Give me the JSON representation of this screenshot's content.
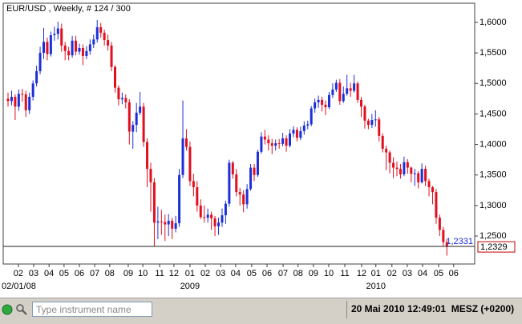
{
  "chart_data": {
    "type": "candlestick",
    "title": "EUR/USD , Weekly, # 124 / 300",
    "up_color": "#1c2fd8",
    "down_color": "#e0101e",
    "open": [
      1.475,
      1.471,
      1.478,
      1.462,
      1.483,
      1.482,
      1.456,
      1.478,
      1.5,
      1.52,
      1.55,
      1.568,
      1.548,
      1.579,
      1.581,
      1.59,
      1.562,
      1.553,
      1.546,
      1.57,
      1.552,
      1.558,
      1.545,
      1.553,
      1.564,
      1.572,
      1.592,
      1.583,
      1.571,
      1.562,
      1.527,
      1.493,
      1.474,
      1.476,
      1.469,
      1.421,
      1.432,
      1.452,
      1.462,
      1.404,
      1.36,
      1.338,
      1.272,
      1.274,
      1.273,
      1.269,
      1.275,
      1.262,
      1.271,
      1.35,
      1.41,
      1.396,
      1.34,
      1.33,
      1.3,
      1.281,
      1.28,
      1.285,
      1.279,
      1.266,
      1.272,
      1.284,
      1.303,
      1.37,
      1.351,
      1.322,
      1.318,
      1.302,
      1.327,
      1.362,
      1.35,
      1.388,
      1.413,
      1.408,
      1.402,
      1.398,
      1.402,
      1.401,
      1.41,
      1.398,
      1.418,
      1.424,
      1.411,
      1.422,
      1.431,
      1.433,
      1.459,
      1.469,
      1.473,
      1.465,
      1.461,
      1.481,
      1.49,
      1.501,
      1.471,
      1.483,
      1.492,
      1.488,
      1.5,
      1.473,
      1.462,
      1.439,
      1.432,
      1.44,
      1.441,
      1.414,
      1.393,
      1.387,
      1.37,
      1.362,
      1.36,
      1.351,
      1.371,
      1.362,
      1.352,
      1.353,
      1.338,
      1.36,
      1.34,
      1.33,
      1.322,
      1.28,
      1.26,
      1.24
    ],
    "high": [
      1.485,
      1.488,
      1.482,
      1.49,
      1.491,
      1.488,
      1.485,
      1.505,
      1.529,
      1.56,
      1.591,
      1.575,
      1.585,
      1.593,
      1.601,
      1.598,
      1.568,
      1.56,
      1.578,
      1.578,
      1.565,
      1.564,
      1.561,
      1.572,
      1.58,
      1.604,
      1.599,
      1.588,
      1.58,
      1.568,
      1.53,
      1.497,
      1.485,
      1.482,
      1.474,
      1.438,
      1.468,
      1.486,
      1.468,
      1.41,
      1.37,
      1.345,
      1.298,
      1.293,
      1.285,
      1.286,
      1.28,
      1.283,
      1.36,
      1.472,
      1.425,
      1.405,
      1.352,
      1.34,
      1.31,
      1.3,
      1.295,
      1.29,
      1.283,
      1.28,
      1.295,
      1.308,
      1.375,
      1.373,
      1.36,
      1.329,
      1.325,
      1.335,
      1.368,
      1.368,
      1.391,
      1.42,
      1.424,
      1.415,
      1.409,
      1.408,
      1.409,
      1.419,
      1.415,
      1.425,
      1.43,
      1.428,
      1.429,
      1.438,
      1.439,
      1.463,
      1.475,
      1.48,
      1.478,
      1.472,
      1.486,
      1.5,
      1.506,
      1.507,
      1.495,
      1.514,
      1.501,
      1.514,
      1.503,
      1.478,
      1.465,
      1.442,
      1.45,
      1.456,
      1.445,
      1.418,
      1.398,
      1.39,
      1.379,
      1.372,
      1.368,
      1.38,
      1.376,
      1.364,
      1.36,
      1.356,
      1.369,
      1.365,
      1.344,
      1.332,
      1.327,
      1.285,
      1.265,
      1.245
    ],
    "low": [
      1.462,
      1.464,
      1.44,
      1.455,
      1.47,
      1.445,
      1.45,
      1.472,
      1.495,
      1.515,
      1.54,
      1.538,
      1.544,
      1.57,
      1.572,
      1.552,
      1.538,
      1.538,
      1.542,
      1.546,
      1.547,
      1.53,
      1.54,
      1.547,
      1.558,
      1.567,
      1.575,
      1.562,
      1.554,
      1.52,
      1.485,
      1.464,
      1.466,
      1.459,
      1.4,
      1.393,
      1.42,
      1.448,
      1.396,
      1.33,
      1.29,
      1.233,
      1.245,
      1.252,
      1.242,
      1.25,
      1.245,
      1.256,
      1.265,
      1.345,
      1.39,
      1.332,
      1.315,
      1.29,
      1.278,
      1.272,
      1.272,
      1.26,
      1.25,
      1.252,
      1.265,
      1.27,
      1.298,
      1.344,
      1.315,
      1.3,
      1.289,
      1.295,
      1.324,
      1.34,
      1.347,
      1.385,
      1.4,
      1.39,
      1.384,
      1.39,
      1.393,
      1.397,
      1.388,
      1.395,
      1.412,
      1.405,
      1.407,
      1.416,
      1.425,
      1.43,
      1.452,
      1.46,
      1.454,
      1.448,
      1.458,
      1.476,
      1.486,
      1.465,
      1.468,
      1.48,
      1.478,
      1.485,
      1.468,
      1.445,
      1.426,
      1.425,
      1.427,
      1.429,
      1.405,
      1.387,
      1.358,
      1.353,
      1.345,
      1.348,
      1.344,
      1.348,
      1.352,
      1.338,
      1.332,
      1.328,
      1.336,
      1.332,
      1.315,
      1.302,
      1.27,
      1.25,
      1.234,
      1.218
    ],
    "close": [
      1.471,
      1.478,
      1.462,
      1.483,
      1.482,
      1.456,
      1.478,
      1.5,
      1.52,
      1.55,
      1.568,
      1.548,
      1.579,
      1.581,
      1.59,
      1.562,
      1.553,
      1.546,
      1.57,
      1.552,
      1.558,
      1.545,
      1.553,
      1.564,
      1.572,
      1.592,
      1.583,
      1.571,
      1.562,
      1.527,
      1.493,
      1.474,
      1.476,
      1.469,
      1.421,
      1.432,
      1.452,
      1.462,
      1.404,
      1.36,
      1.338,
      1.272,
      1.274,
      1.273,
      1.269,
      1.275,
      1.262,
      1.271,
      1.35,
      1.41,
      1.396,
      1.34,
      1.33,
      1.3,
      1.281,
      1.28,
      1.285,
      1.279,
      1.266,
      1.272,
      1.284,
      1.303,
      1.37,
      1.351,
      1.322,
      1.318,
      1.302,
      1.327,
      1.362,
      1.35,
      1.388,
      1.413,
      1.408,
      1.402,
      1.398,
      1.402,
      1.401,
      1.41,
      1.398,
      1.418,
      1.424,
      1.411,
      1.422,
      1.431,
      1.433,
      1.459,
      1.469,
      1.473,
      1.465,
      1.461,
      1.481,
      1.49,
      1.501,
      1.471,
      1.483,
      1.492,
      1.488,
      1.5,
      1.473,
      1.462,
      1.439,
      1.432,
      1.44,
      1.441,
      1.414,
      1.393,
      1.387,
      1.37,
      1.362,
      1.36,
      1.351,
      1.371,
      1.362,
      1.352,
      1.353,
      1.338,
      1.36,
      1.34,
      1.33,
      1.322,
      1.28,
      1.26,
      1.24,
      1.2329
    ],
    "ylim": [
      1.2042,
      1.6314
    ],
    "yticks": [
      {
        "value": 1.25,
        "label": "1,2500"
      },
      {
        "value": 1.3,
        "label": "1,3000"
      },
      {
        "value": 1.35,
        "label": "1,3500"
      },
      {
        "value": 1.4,
        "label": "1,4000"
      },
      {
        "value": 1.45,
        "label": "1,4500"
      },
      {
        "value": 1.5,
        "label": "1,5000"
      },
      {
        "value": 1.55,
        "label": "1,5500"
      },
      {
        "value": 1.6,
        "label": "1,6000"
      }
    ],
    "xlim": [
      -1.35,
      130.8
    ],
    "xticks": [
      {
        "value": 2.9,
        "label": "02"
      },
      {
        "value": 7.2,
        "label": "03"
      },
      {
        "value": 11.5,
        "label": "04"
      },
      {
        "value": 15.7,
        "label": "05"
      },
      {
        "value": 20.0,
        "label": "06"
      },
      {
        "value": 24.3,
        "label": "07"
      },
      {
        "value": 28.5,
        "label": "08"
      },
      {
        "value": 33.7,
        "label": "09"
      },
      {
        "value": 37.8,
        "label": "10"
      },
      {
        "value": 42.5,
        "label": "11"
      },
      {
        "value": 46.5,
        "label": "12"
      },
      {
        "value": 51.0,
        "label": "01"
      },
      {
        "value": 55.3,
        "label": "02"
      },
      {
        "value": 59.6,
        "label": "03"
      },
      {
        "value": 63.8,
        "label": "04"
      },
      {
        "value": 68.3,
        "label": "05"
      },
      {
        "value": 72.6,
        "label": "06"
      },
      {
        "value": 77.1,
        "label": "07"
      },
      {
        "value": 81.3,
        "label": "08"
      },
      {
        "value": 85.6,
        "label": "09"
      },
      {
        "value": 89.9,
        "label": "10"
      },
      {
        "value": 94.4,
        "label": "11"
      },
      {
        "value": 99.1,
        "label": "12"
      },
      {
        "value": 103.1,
        "label": "01"
      },
      {
        "value": 107.6,
        "label": "02"
      },
      {
        "value": 111.9,
        "label": "03"
      },
      {
        "value": 116.2,
        "label": "04"
      },
      {
        "value": 120.7,
        "label": "05"
      },
      {
        "value": 124.9,
        "label": "06"
      }
    ],
    "period_labels": [
      {
        "value": -1.35,
        "label": "02/01/08"
      },
      {
        "value": 51.0,
        "label": "2009"
      },
      {
        "value": 103.1,
        "label": "2010"
      }
    ],
    "price_line": {
      "value": 1.2331,
      "label": "1,2331"
    },
    "last_price": {
      "value": 1.2329,
      "label": "1,2329"
    }
  },
  "toolbar": {
    "search_placeholder": "Type instrument name",
    "status": "20 Mai 2010 12:49:01  MESZ (+0200)"
  }
}
